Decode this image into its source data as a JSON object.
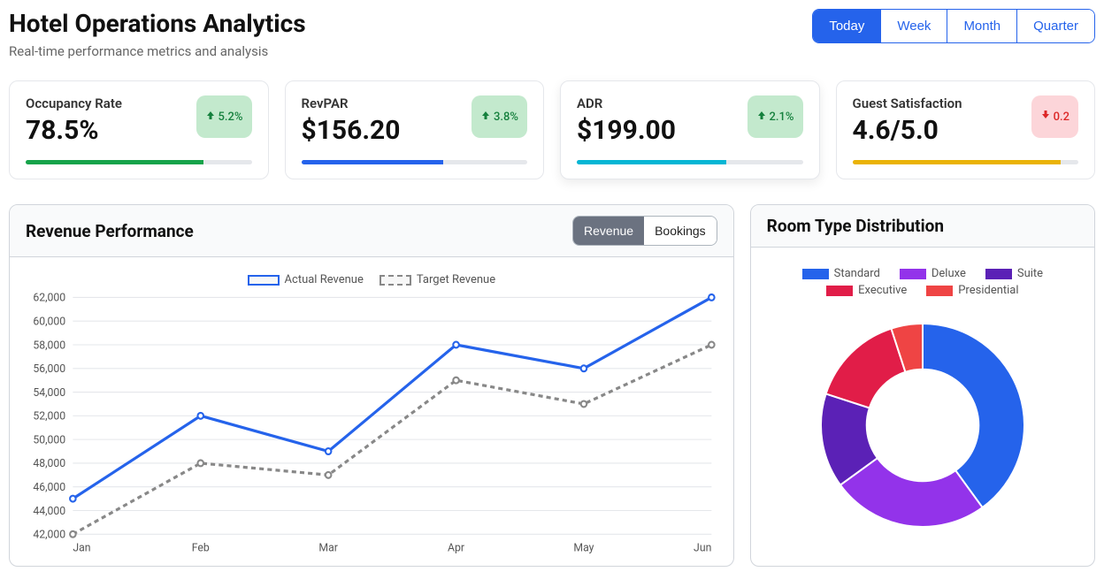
{
  "header": {
    "title": "Hotel Operations Analytics",
    "subtitle": "Real-time performance metrics and analysis"
  },
  "period_tabs": [
    "Today",
    "Week",
    "Month",
    "Quarter"
  ],
  "period_active_index": 0,
  "kpis": [
    {
      "label": "Occupancy Rate",
      "value": "78.5%",
      "delta": "5.2%",
      "delta_dir": "up",
      "bar_percent": 78.5,
      "bar_color": "#16a34a",
      "highlight": false
    },
    {
      "label": "RevPAR",
      "value": "$156.20",
      "delta": "3.8%",
      "delta_dir": "up",
      "bar_percent": 63,
      "bar_color": "#2563eb",
      "highlight": false
    },
    {
      "label": "ADR",
      "value": "$199.00",
      "delta": "2.1%",
      "delta_dir": "up",
      "bar_percent": 66,
      "bar_color": "#06b6d4",
      "highlight": true
    },
    {
      "label": "Guest Satisfaction",
      "value": "4.6/5.0",
      "delta": "0.2",
      "delta_dir": "down",
      "bar_percent": 92,
      "bar_color": "#eab308",
      "highlight": false
    }
  ],
  "revenue_panel": {
    "title": "Revenue Performance",
    "toggles": [
      "Revenue",
      "Bookings"
    ],
    "toggle_active_index": 0,
    "chart": {
      "type": "line",
      "categories": [
        "Jan",
        "Feb",
        "Mar",
        "Apr",
        "May",
        "Jun"
      ],
      "series": [
        {
          "name": "Actual Revenue",
          "key": "actual",
          "values": [
            45000,
            52000,
            49000,
            58000,
            56000,
            62000
          ],
          "color": "#2563eb",
          "dashed": false
        },
        {
          "name": "Target Revenue",
          "key": "target",
          "values": [
            42000,
            48000,
            47000,
            55000,
            53000,
            58000
          ],
          "color": "#888888",
          "dashed": true
        }
      ],
      "ylim": [
        42000,
        62000
      ],
      "ytick_step": 2000,
      "grid_color": "#e5e7eb",
      "axis_fontsize": 12,
      "legend_fontsize": 13,
      "line_width": 3,
      "marker_radius": 3.2
    }
  },
  "room_type_panel": {
    "title": "Room Type Distribution",
    "chart": {
      "type": "doughnut",
      "slices": [
        {
          "label": "Standard",
          "value": 40,
          "color": "#2563eb"
        },
        {
          "label": "Deluxe",
          "value": 25,
          "color": "#9333ea"
        },
        {
          "label": "Suite",
          "value": 15,
          "color": "#5b21b6"
        },
        {
          "label": "Executive",
          "value": 15,
          "color": "#e11d48"
        },
        {
          "label": "Presidential",
          "value": 5,
          "color": "#ef4444"
        }
      ],
      "inner_radius_ratio": 0.55,
      "start_angle_deg": -90,
      "legend_fontsize": 13
    }
  }
}
